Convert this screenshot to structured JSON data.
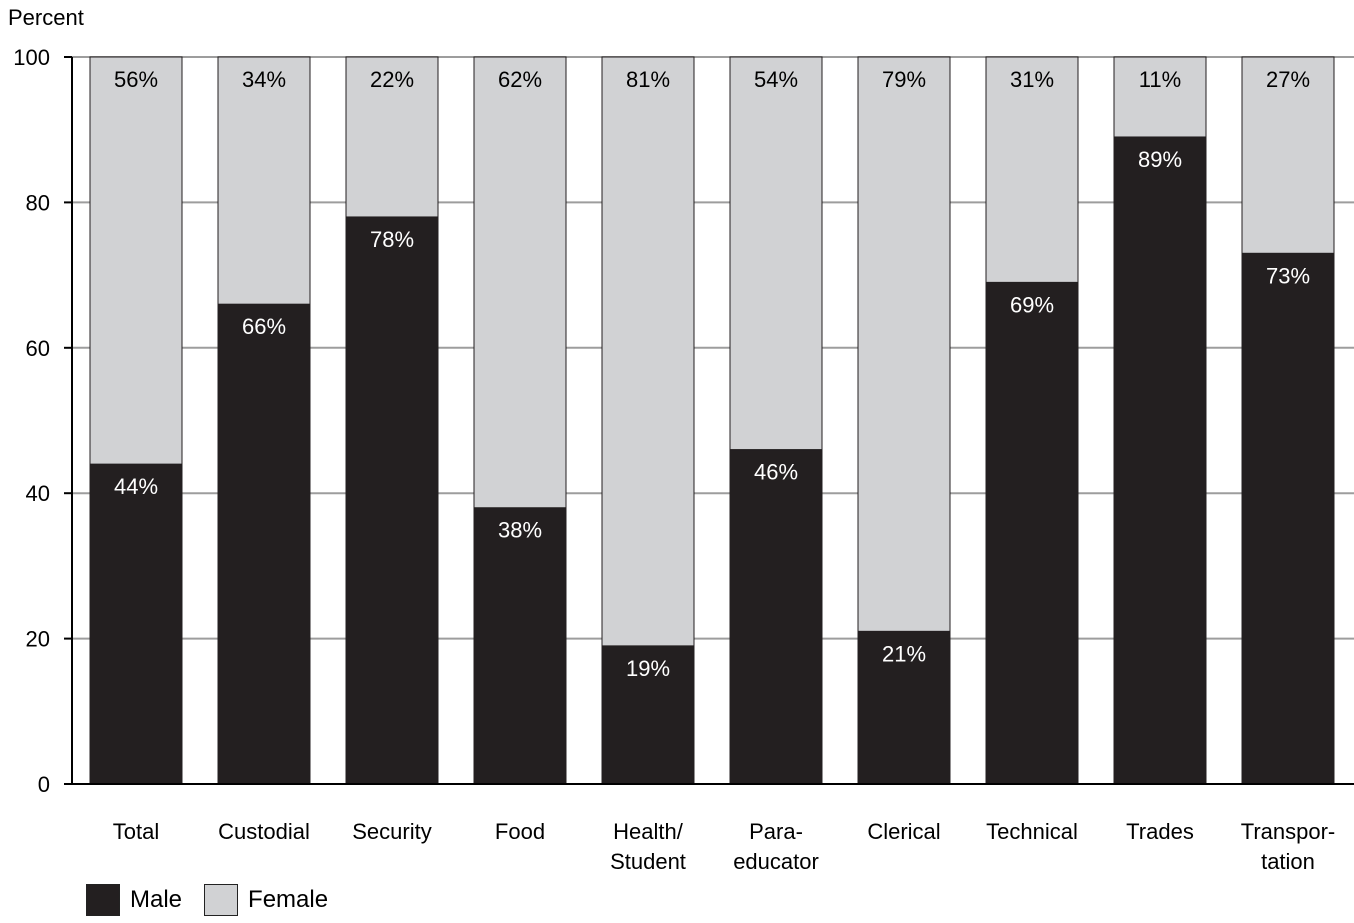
{
  "chart_data": {
    "type": "bar",
    "stacked": true,
    "ylabel": "Percent",
    "ylim": [
      0,
      100
    ],
    "yticks": [
      0,
      20,
      40,
      60,
      80,
      100
    ],
    "grid": true,
    "legend_position": "bottom-left",
    "categories": [
      [
        "Total"
      ],
      [
        "Custodial"
      ],
      [
        "Security"
      ],
      [
        "Food"
      ],
      [
        "Health/",
        "Student"
      ],
      [
        "Para-",
        "educator"
      ],
      [
        "Clerical"
      ],
      [
        "Technical"
      ],
      [
        "Trades"
      ],
      [
        "Transpor-",
        "tation"
      ]
    ],
    "series": [
      {
        "name": "Male",
        "color": "#231f20",
        "label_color": "#ffffff",
        "values": [
          44,
          66,
          78,
          38,
          19,
          46,
          21,
          69,
          89,
          73
        ],
        "labels": [
          "44%",
          "66%",
          "78%",
          "38%",
          "19%",
          "46%",
          "21%",
          "69%",
          "89%",
          "73%"
        ]
      },
      {
        "name": "Female",
        "color": "#d1d2d4",
        "label_color": "#000000",
        "values": [
          56,
          34,
          22,
          62,
          81,
          54,
          79,
          31,
          11,
          27
        ],
        "labels": [
          "56%",
          "34%",
          "22%",
          "62%",
          "81%",
          "54%",
          "79%",
          "31%",
          "11%",
          "27%"
        ]
      }
    ]
  },
  "legend": {
    "male_label": "Male",
    "female_label": "Female"
  }
}
